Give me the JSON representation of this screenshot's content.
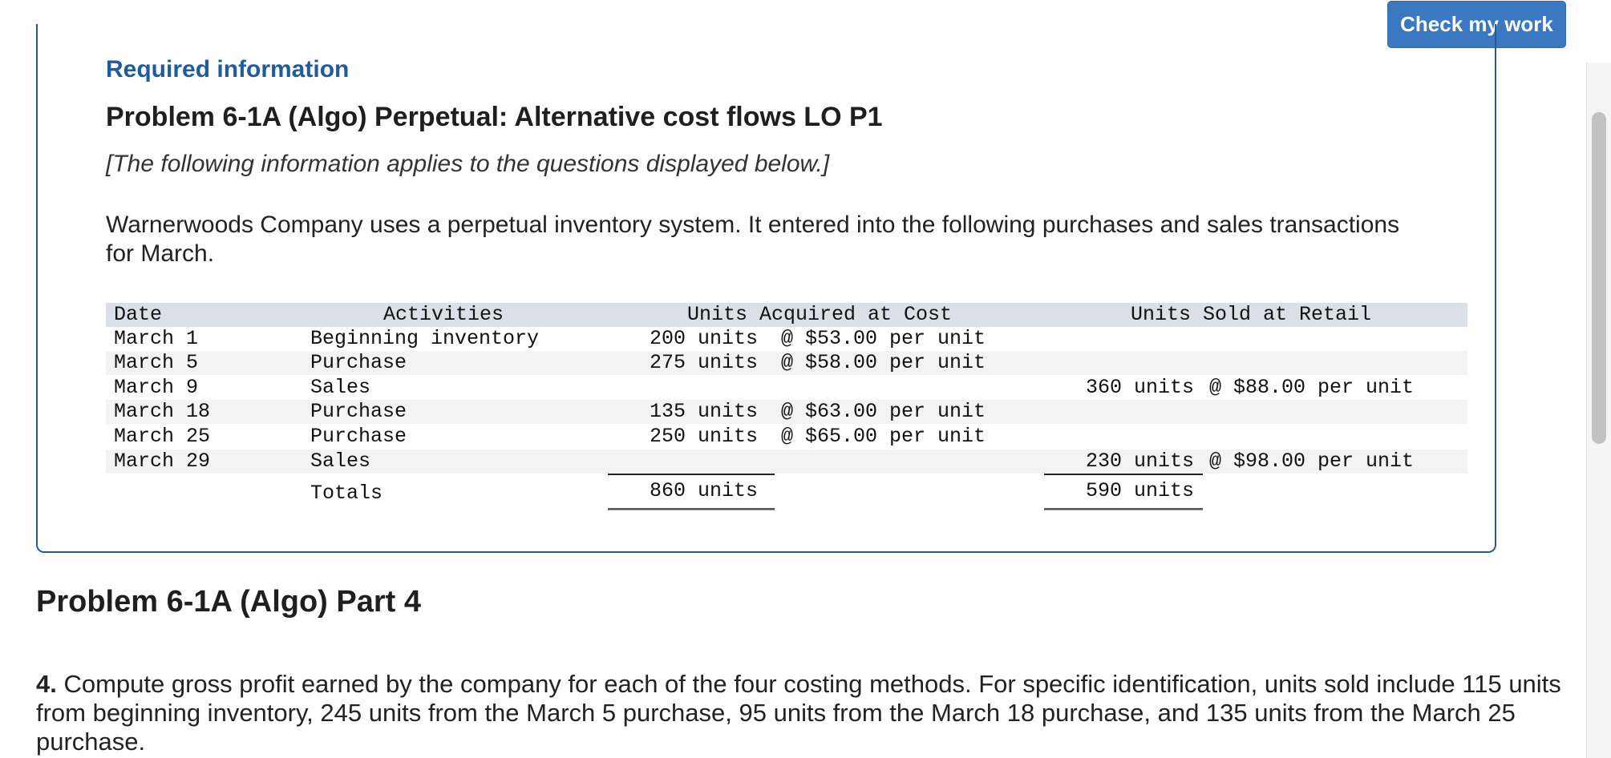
{
  "toolbar": {
    "check_label": "Check my work"
  },
  "info": {
    "required_label": "Required information",
    "problem_title": "Problem 6-1A (Algo) Perpetual: Alternative cost flows LO P1",
    "applies_note": "[The following information applies to the questions displayed below.]",
    "intro_text": "Warnerwoods Company uses a perpetual inventory system. It entered into the following purchases and sales transactions for March."
  },
  "table": {
    "headers": {
      "date": "Date",
      "activities": "Activities",
      "acquired": "Units Acquired at Cost",
      "sold": "Units Sold at Retail"
    },
    "rows": [
      {
        "date": "March 1",
        "activity": "Beginning inventory",
        "acq_units": "200 units",
        "acq_price": "@ $53.00 per unit",
        "sold_units": "",
        "sold_price": ""
      },
      {
        "date": "March 5",
        "activity": "Purchase",
        "acq_units": "275 units",
        "acq_price": "@ $58.00 per unit",
        "sold_units": "",
        "sold_price": ""
      },
      {
        "date": "March 9",
        "activity": "Sales",
        "acq_units": "",
        "acq_price": "",
        "sold_units": "360 units",
        "sold_price": "@ $88.00 per unit"
      },
      {
        "date": "March 18",
        "activity": "Purchase",
        "acq_units": "135 units",
        "acq_price": "@ $63.00 per unit",
        "sold_units": "",
        "sold_price": ""
      },
      {
        "date": "March 25",
        "activity": "Purchase",
        "acq_units": "250 units",
        "acq_price": "@ $65.00 per unit",
        "sold_units": "",
        "sold_price": ""
      },
      {
        "date": "March 29",
        "activity": "Sales",
        "acq_units": "",
        "acq_price": "",
        "sold_units": "230 units",
        "sold_price": "@ $98.00 per unit"
      }
    ],
    "totals": {
      "label": "Totals",
      "acq_units": "860 units",
      "sold_units": "590 units"
    }
  },
  "part": {
    "title": "Problem 6-1A (Algo) Part 4",
    "question_number": "4.",
    "question_text": " Compute gross profit earned by the company for each of the four costing methods. For specific identification, units sold include 115 units from beginning inventory, 245 units from the March 5 purchase, 95 units from the March 18 purchase, and 135 units from the March 25 purchase."
  }
}
